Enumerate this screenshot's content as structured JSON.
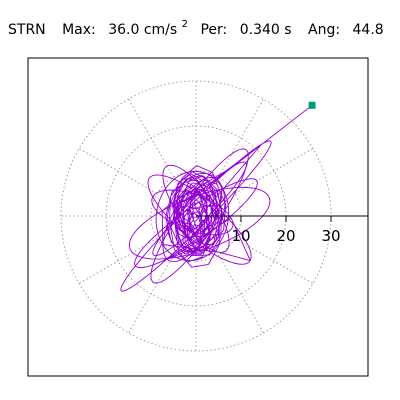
{
  "header": {
    "component": "STRN",
    "max_label": "Max:",
    "max_value": "36.0 cm/s",
    "max_exp": "2",
    "period_label": "Per:",
    "period_value": "0.340 s",
    "angle_label": "Ang:",
    "angle_value": "44.8"
  },
  "chart_data": {
    "type": "scatter",
    "subtype": "polar particle-motion orbit",
    "component": "STRN",
    "max_accel": 36.0,
    "max_accel_unit": "cm/s^2",
    "period_s": 0.34,
    "angle_deg": 44.8,
    "radial_axis": {
      "ticks": [
        10,
        20,
        30
      ],
      "tick_labels": [
        "10",
        "20",
        "30"
      ],
      "range": [
        0,
        40
      ]
    },
    "grid": {
      "rings": [
        10,
        20,
        30
      ],
      "spokes_deg": [
        0,
        30,
        60,
        90,
        120,
        150,
        180,
        210,
        240,
        270,
        300,
        330
      ],
      "style": "dotted"
    },
    "colors": {
      "trace": "#9400d3",
      "peak_marker": "#00997a",
      "grid": "#888888"
    },
    "peak_point": {
      "x": 25.8,
      "y": 24.6
    },
    "orbit_loops": [
      [
        0.0,
        1.0,
        3.0,
        20
      ],
      [
        22.0,
        25.0,
        2.5,
        45
      ],
      [
        13.0,
        16.0,
        2.5,
        45
      ],
      [
        9.0,
        12.0,
        4.5,
        60
      ],
      [
        6.0,
        12.0,
        6.0,
        70
      ],
      [
        14.0,
        19.0,
        6.0,
        20
      ],
      [
        8.0,
        12.0,
        8.0,
        80
      ],
      [
        10.0,
        13.0,
        4.0,
        125
      ],
      [
        13.0,
        16.0,
        4.5,
        140
      ],
      [
        8.0,
        11.0,
        4.0,
        160
      ],
      [
        15.0,
        18.0,
        3.5,
        35
      ],
      [
        16.0,
        20.0,
        4.0,
        55
      ]
    ]
  }
}
